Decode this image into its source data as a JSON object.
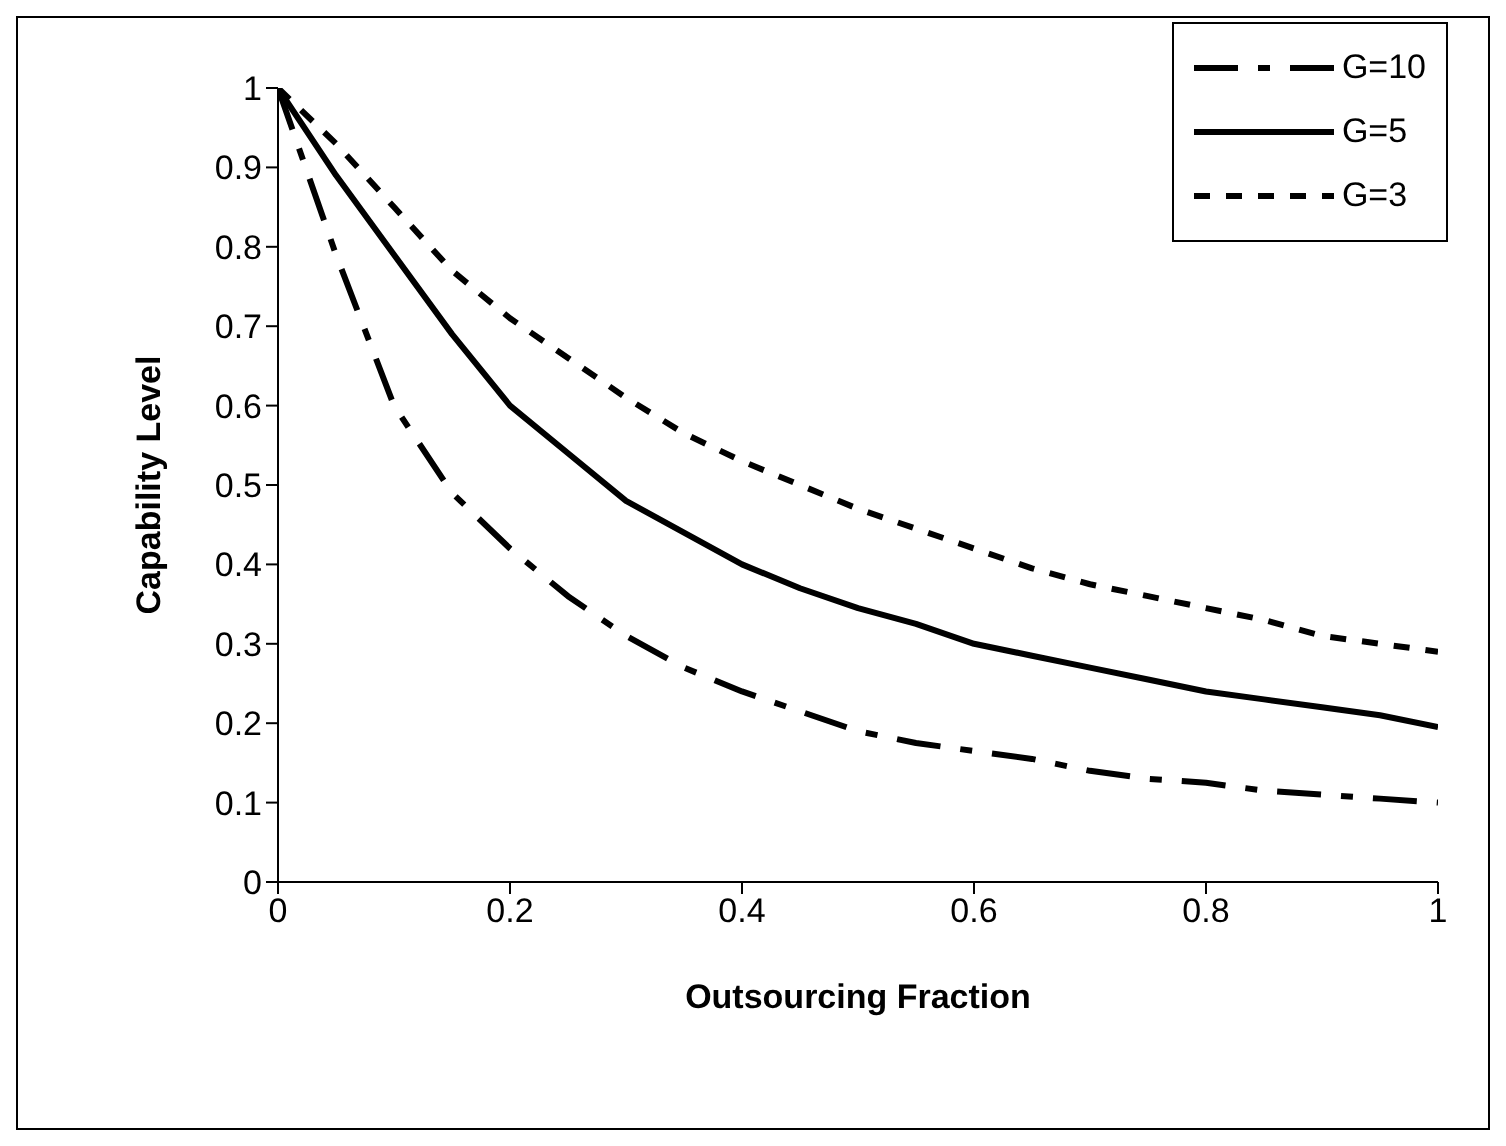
{
  "chart_data": {
    "type": "line",
    "xlabel": "Outsourcing Fraction",
    "ylabel": "Capability Level",
    "x": [
      0,
      0.05,
      0.1,
      0.15,
      0.2,
      0.25,
      0.3,
      0.35,
      0.4,
      0.45,
      0.5,
      0.55,
      0.6,
      0.65,
      0.7,
      0.75,
      0.8,
      0.85,
      0.9,
      0.95,
      1
    ],
    "series": [
      {
        "name": "G=10",
        "color": "#000000",
        "line_style": "dashed",
        "values": [
          1,
          0.79,
          0.6,
          0.49,
          0.42,
          0.36,
          0.31,
          0.27,
          0.24,
          0.215,
          0.19,
          0.175,
          0.165,
          0.155,
          0.14,
          0.13,
          0.125,
          0.115,
          0.11,
          0.105,
          0.1
        ]
      },
      {
        "name": "G=5",
        "color": "#000000",
        "line_style": "solid",
        "values": [
          1,
          0.89,
          0.79,
          0.69,
          0.6,
          0.54,
          0.48,
          0.44,
          0.4,
          0.37,
          0.345,
          0.325,
          0.3,
          0.285,
          0.27,
          0.255,
          0.24,
          0.23,
          0.22,
          0.21,
          0.195
        ]
      },
      {
        "name": "G=3",
        "color": "#000000",
        "line_style": "dotted",
        "values": [
          1,
          0.93,
          0.85,
          0.77,
          0.71,
          0.66,
          0.61,
          0.565,
          0.53,
          0.5,
          0.47,
          0.445,
          0.42,
          0.395,
          0.375,
          0.36,
          0.345,
          0.33,
          0.31,
          0.3,
          0.29
        ]
      }
    ],
    "xlim": [
      0,
      1
    ],
    "xticks": [
      0,
      0.2,
      0.4,
      0.6,
      0.8,
      1
    ],
    "ylim": [
      0,
      1
    ],
    "yticks": [
      0,
      0.1,
      0.2,
      0.3,
      0.4,
      0.5,
      0.6,
      0.7,
      0.8,
      0.9,
      1
    ],
    "grid": false,
    "legend": "top right",
    "marker": "none"
  }
}
